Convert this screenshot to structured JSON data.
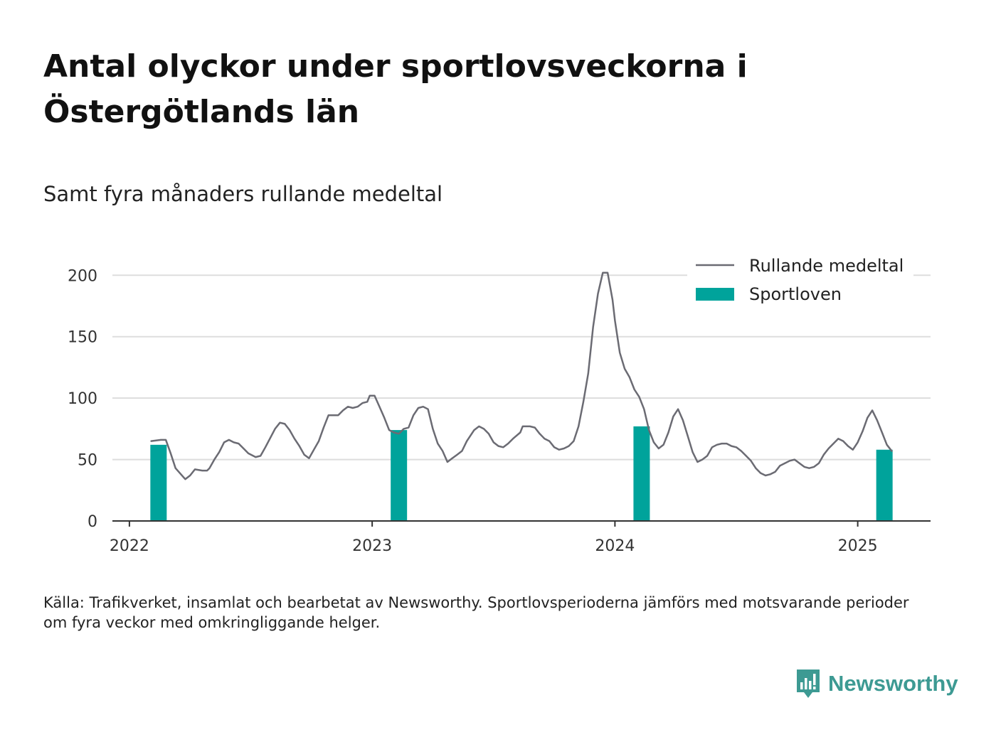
{
  "title": "Antal olyckor under sportlovsveckorna i Östergötlands län",
  "subtitle": "Samt fyra månaders rullande medeltal",
  "source": "Källa: Trafikverket, insamlat och bearbetat av Newsworthy. Sportlovsperioderna jämförs med motsvarande perioder om fyra veckor med omkringliggande helger.",
  "brand": {
    "name": "Newsworthy",
    "logo_icon": "newsworthy-chart-logo-icon"
  },
  "colors": {
    "line": "#6b6b73",
    "bar": "#00a39b",
    "grid": "#dddddd",
    "axis": "#333333",
    "brand": "#3d9a93"
  },
  "chart_data": {
    "type": "bar+line",
    "title": "Antal olyckor under sportlovsveckorna i Östergötlands län",
    "subtitle": "Samt fyra månaders rullande medeltal",
    "xlabel": "",
    "ylabel": "",
    "ylim": [
      0,
      210
    ],
    "xlim": [
      2021.93,
      2025.3
    ],
    "yticks": [
      0,
      50,
      100,
      150,
      200
    ],
    "xticks": [
      2022,
      2023,
      2024,
      2025
    ],
    "xtick_labels": [
      "2022",
      "2023",
      "2024",
      "2025"
    ],
    "grid": "horizontal",
    "legend": {
      "placement": "top-right",
      "entries": [
        "Rullande medeltal",
        "Sportloven"
      ]
    },
    "series": [
      {
        "name": "Rullande medeltal",
        "type": "line",
        "points": [
          [
            2022.09,
            65
          ],
          [
            2022.13,
            66
          ],
          [
            2022.15,
            66
          ],
          [
            2022.17,
            55
          ],
          [
            2022.19,
            43
          ],
          [
            2022.23,
            34
          ],
          [
            2022.25,
            37
          ],
          [
            2022.27,
            42
          ],
          [
            2022.3,
            41
          ],
          [
            2022.32,
            41
          ],
          [
            2022.33,
            43
          ],
          [
            2022.35,
            50
          ],
          [
            2022.37,
            56
          ],
          [
            2022.39,
            64
          ],
          [
            2022.41,
            66
          ],
          [
            2022.43,
            64
          ],
          [
            2022.45,
            63
          ],
          [
            2022.47,
            59
          ],
          [
            2022.49,
            55
          ],
          [
            2022.52,
            52
          ],
          [
            2022.54,
            53
          ],
          [
            2022.56,
            60
          ],
          [
            2022.6,
            75
          ],
          [
            2022.62,
            80
          ],
          [
            2022.64,
            79
          ],
          [
            2022.66,
            74
          ],
          [
            2022.68,
            67
          ],
          [
            2022.7,
            61
          ],
          [
            2022.72,
            54
          ],
          [
            2022.74,
            51
          ],
          [
            2022.76,
            58
          ],
          [
            2022.78,
            65
          ],
          [
            2022.8,
            76
          ],
          [
            2022.82,
            86
          ],
          [
            2022.86,
            86
          ],
          [
            2022.88,
            90
          ],
          [
            2022.9,
            93
          ],
          [
            2022.92,
            92
          ],
          [
            2022.94,
            93
          ],
          [
            2022.96,
            96
          ],
          [
            2022.98,
            97
          ],
          [
            2022.99,
            102
          ],
          [
            2023.01,
            102
          ],
          [
            2023.03,
            93
          ],
          [
            2023.05,
            84
          ],
          [
            2023.07,
            74
          ],
          [
            2023.09,
            72
          ],
          [
            2023.11,
            71
          ],
          [
            2023.13,
            75
          ],
          [
            2023.15,
            76
          ],
          [
            2023.17,
            86
          ],
          [
            2023.19,
            92
          ],
          [
            2023.21,
            93
          ],
          [
            2023.23,
            91
          ],
          [
            2023.25,
            75
          ],
          [
            2023.27,
            63
          ],
          [
            2023.29,
            57
          ],
          [
            2023.31,
            48
          ],
          [
            2023.33,
            51
          ],
          [
            2023.35,
            54
          ],
          [
            2023.37,
            57
          ],
          [
            2023.39,
            65
          ],
          [
            2023.42,
            74
          ],
          [
            2023.44,
            77
          ],
          [
            2023.46,
            75
          ],
          [
            2023.48,
            71
          ],
          [
            2023.5,
            64
          ],
          [
            2023.52,
            61
          ],
          [
            2023.54,
            60
          ],
          [
            2023.56,
            63
          ],
          [
            2023.58,
            67
          ],
          [
            2023.61,
            72
          ],
          [
            2023.62,
            77
          ],
          [
            2023.65,
            77
          ],
          [
            2023.67,
            76
          ],
          [
            2023.69,
            71
          ],
          [
            2023.71,
            67
          ],
          [
            2023.73,
            65
          ],
          [
            2023.75,
            60
          ],
          [
            2023.77,
            58
          ],
          [
            2023.79,
            59
          ],
          [
            2023.81,
            61
          ],
          [
            2023.83,
            65
          ],
          [
            2023.85,
            77
          ],
          [
            2023.87,
            97
          ],
          [
            2023.89,
            120
          ],
          [
            2023.91,
            158
          ],
          [
            2023.93,
            185
          ],
          [
            2023.95,
            202
          ],
          [
            2023.97,
            202
          ],
          [
            2023.99,
            180
          ],
          [
            2024.0,
            163
          ],
          [
            2024.02,
            137
          ],
          [
            2024.04,
            124
          ],
          [
            2024.06,
            117
          ],
          [
            2024.08,
            107
          ],
          [
            2024.1,
            101
          ],
          [
            2024.12,
            91
          ],
          [
            2024.14,
            74
          ],
          [
            2024.16,
            64
          ],
          [
            2024.18,
            59
          ],
          [
            2024.2,
            62
          ],
          [
            2024.22,
            72
          ],
          [
            2024.24,
            85
          ],
          [
            2024.26,
            91
          ],
          [
            2024.28,
            82
          ],
          [
            2024.3,
            69
          ],
          [
            2024.32,
            56
          ],
          [
            2024.34,
            48
          ],
          [
            2024.36,
            50
          ],
          [
            2024.38,
            53
          ],
          [
            2024.4,
            60
          ],
          [
            2024.42,
            62
          ],
          [
            2024.44,
            63
          ],
          [
            2024.46,
            63
          ],
          [
            2024.48,
            61
          ],
          [
            2024.5,
            60
          ],
          [
            2024.52,
            57
          ],
          [
            2024.54,
            53
          ],
          [
            2024.56,
            49
          ],
          [
            2024.58,
            43
          ],
          [
            2024.6,
            39
          ],
          [
            2024.62,
            37
          ],
          [
            2024.64,
            38
          ],
          [
            2024.66,
            40
          ],
          [
            2024.68,
            45
          ],
          [
            2024.7,
            47
          ],
          [
            2024.72,
            49
          ],
          [
            2024.74,
            50
          ],
          [
            2024.76,
            47
          ],
          [
            2024.78,
            44
          ],
          [
            2024.8,
            43
          ],
          [
            2024.82,
            44
          ],
          [
            2024.84,
            47
          ],
          [
            2024.86,
            54
          ],
          [
            2024.88,
            59
          ],
          [
            2024.9,
            63
          ],
          [
            2024.92,
            67
          ],
          [
            2024.94,
            65
          ],
          [
            2024.96,
            61
          ],
          [
            2024.98,
            58
          ],
          [
            2025.0,
            64
          ],
          [
            2025.02,
            73
          ],
          [
            2025.04,
            84
          ],
          [
            2025.06,
            90
          ],
          [
            2025.08,
            82
          ],
          [
            2025.1,
            72
          ],
          [
            2025.12,
            62
          ],
          [
            2025.14,
            57
          ]
        ]
      },
      {
        "name": "Sportloven",
        "type": "bar",
        "points": [
          [
            2022.12,
            62
          ],
          [
            2023.11,
            74
          ],
          [
            2024.11,
            77
          ],
          [
            2025.11,
            58
          ]
        ]
      }
    ]
  }
}
